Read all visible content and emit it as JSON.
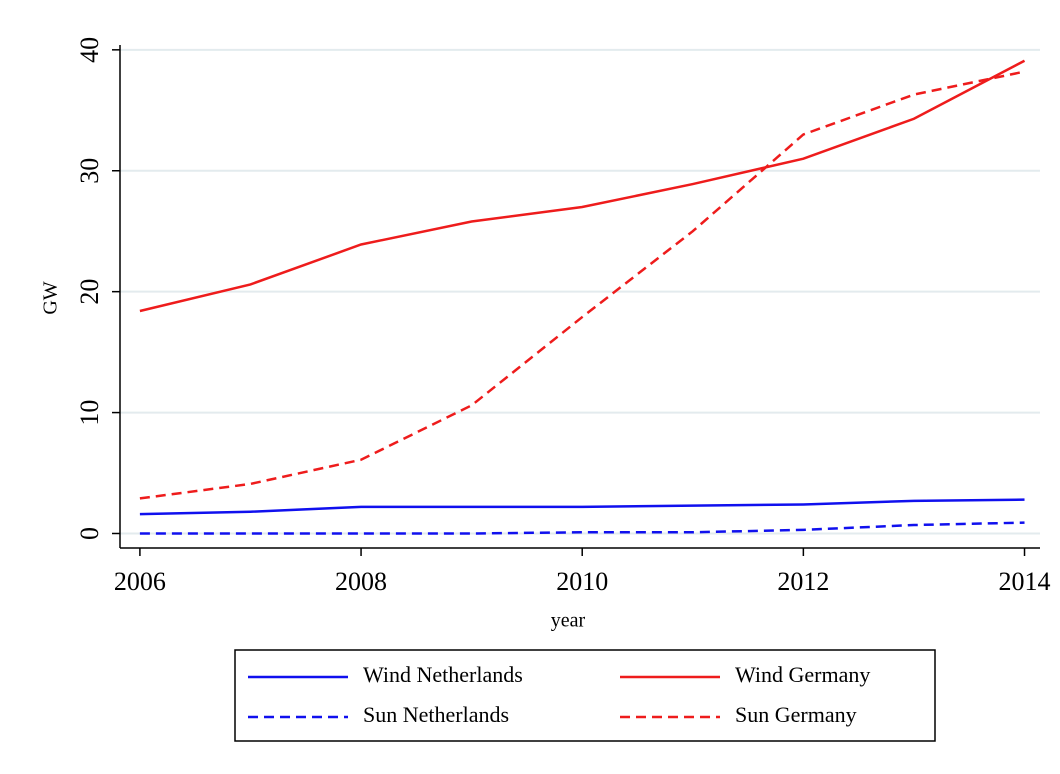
{
  "chart_data": {
    "type": "line",
    "x": [
      2006,
      2007,
      2008,
      2009,
      2010,
      2011,
      2012,
      2013,
      2014
    ],
    "series": [
      {
        "name": "Wind Netherlands",
        "color": "#1010ee",
        "style": "solid",
        "values": [
          1.6,
          1.8,
          2.2,
          2.2,
          2.2,
          2.3,
          2.4,
          2.7,
          2.8
        ]
      },
      {
        "name": "Wind Germany",
        "color": "#ee1c1c",
        "style": "solid",
        "values": [
          18.4,
          20.6,
          23.9,
          25.8,
          27.0,
          28.9,
          31.0,
          34.3,
          39.1
        ]
      },
      {
        "name": "Sun Netherlands",
        "color": "#1010ee",
        "style": "dashed",
        "values": [
          0.0,
          0.0,
          0.0,
          0.0,
          0.1,
          0.1,
          0.3,
          0.7,
          0.9
        ]
      },
      {
        "name": "Sun Germany",
        "color": "#ee1c1c",
        "style": "dashed",
        "values": [
          2.9,
          4.1,
          6.1,
          10.6,
          17.9,
          25.0,
          33.0,
          36.3,
          38.2
        ]
      }
    ],
    "xlabel": "year",
    "ylabel": "GW",
    "xlim": [
      2005.82,
      2014.14
    ],
    "xticks": [
      2006,
      2008,
      2010,
      2012,
      2014
    ],
    "ylim": [
      -1.2,
      40.4
    ],
    "yticks": [
      0,
      10,
      20,
      30,
      40
    ],
    "grid": true,
    "legend": "bottom"
  }
}
